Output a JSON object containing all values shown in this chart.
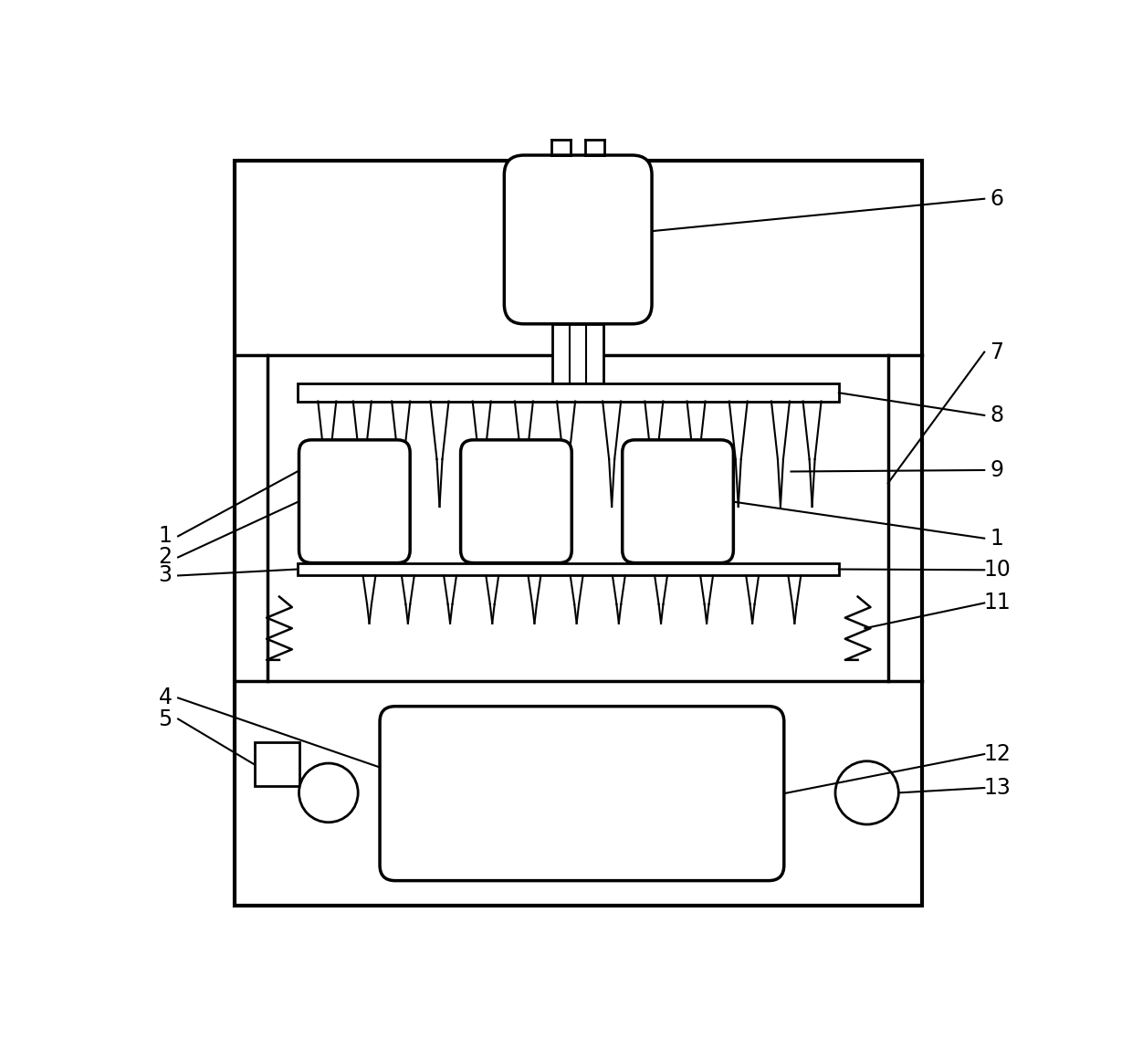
{
  "bg": "#ffffff",
  "lc": "#000000",
  "fig_w": 12.4,
  "fig_h": 11.6,
  "dpi": 100
}
